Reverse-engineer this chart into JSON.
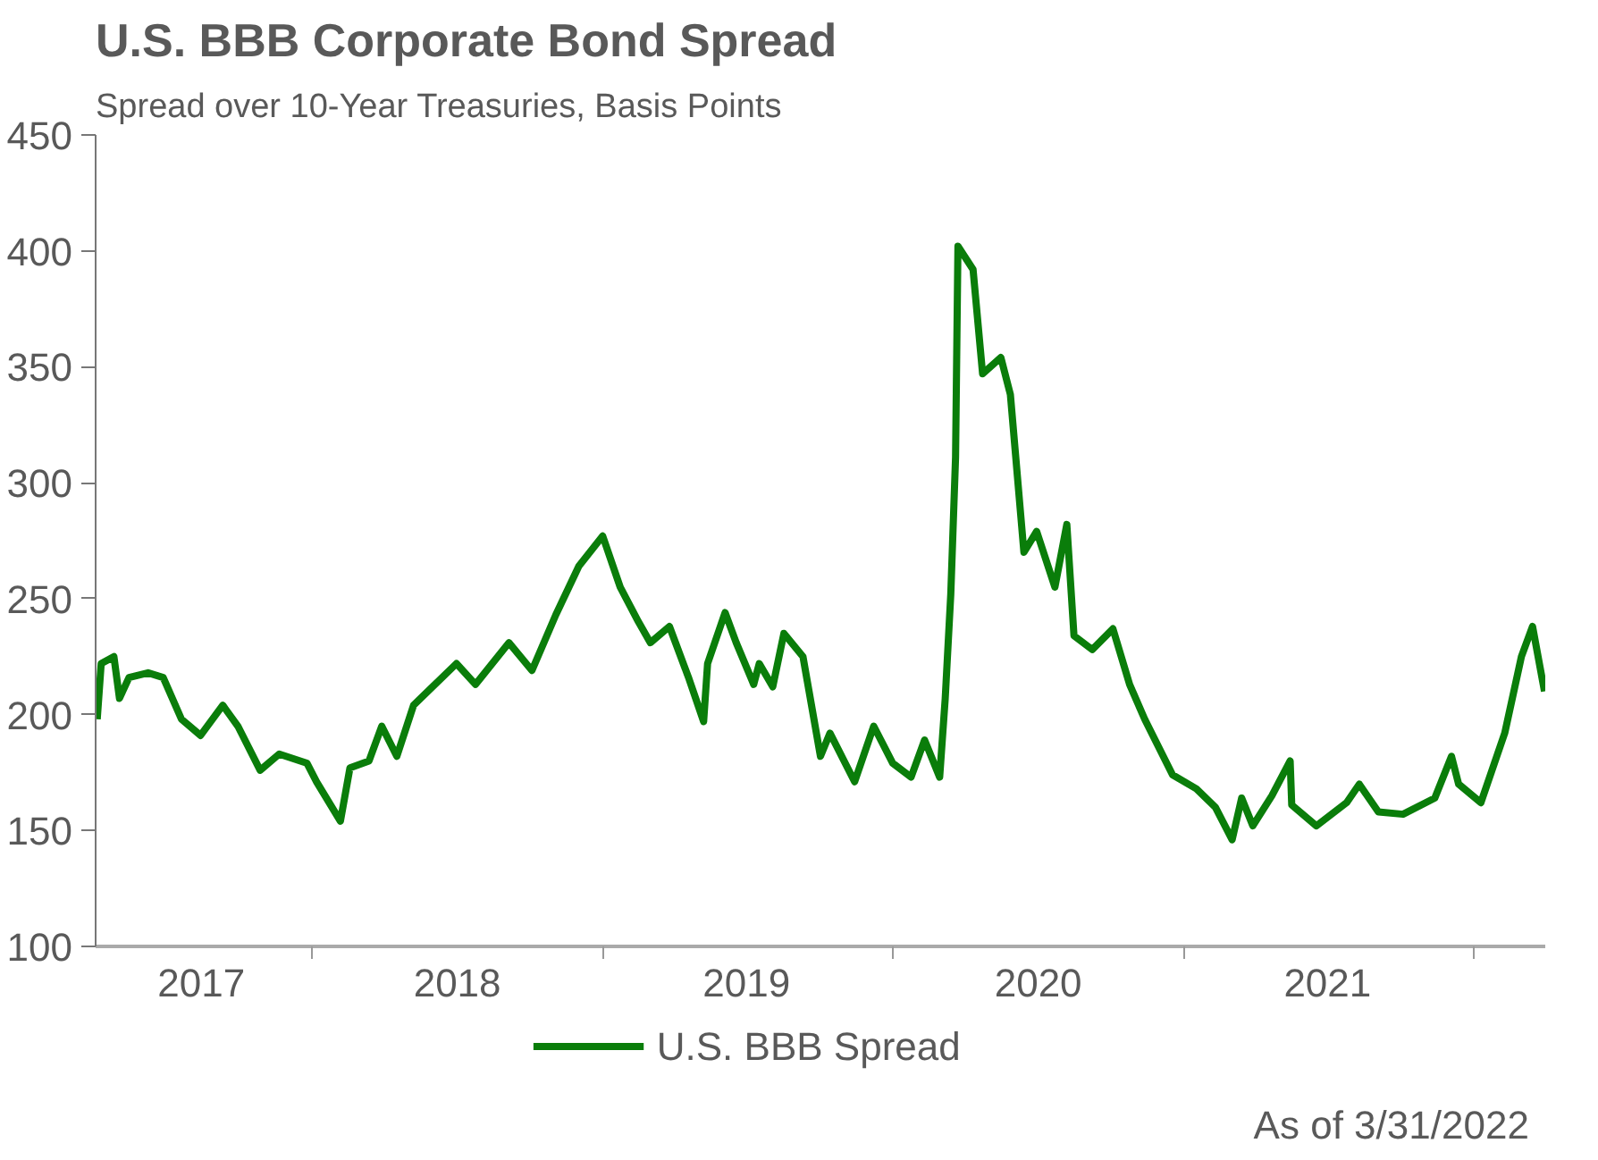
{
  "chart_data": {
    "type": "line",
    "title": "U.S. BBB Corporate Bond Spread",
    "subtitle": "Spread over 10-Year Treasuries, Basis Points",
    "annotations": [
      "As of 3/31/2022"
    ],
    "x": [
      "2017-04-05",
      "2017-04-10",
      "2017-04-26",
      "2017-05-03",
      "2017-05-15",
      "2017-06-08",
      "2017-06-27",
      "2017-07-20",
      "2017-08-13",
      "2017-09-10",
      "2017-09-29",
      "2017-10-27",
      "2017-11-20",
      "2017-12-25",
      "2018-01-06",
      "2018-02-05",
      "2018-02-17",
      "2018-03-13",
      "2018-03-29",
      "2018-04-17",
      "2018-05-08",
      "2018-06-01",
      "2018-07-01",
      "2018-07-25",
      "2018-09-05",
      "2018-10-04",
      "2018-11-03",
      "2018-12-02",
      "2019-01-01",
      "2019-01-23",
      "2019-02-15",
      "2019-03-02",
      "2019-03-26",
      "2019-04-19",
      "2019-05-08",
      "2019-05-13",
      "2019-06-04",
      "2019-06-18",
      "2019-07-10",
      "2019-07-17",
      "2019-08-03",
      "2019-08-17",
      "2019-09-10",
      "2019-10-02",
      "2019-10-14",
      "2019-11-14",
      "2019-12-08",
      "2020-01-01",
      "2020-01-24",
      "2020-02-10",
      "2020-02-29",
      "2020-03-07",
      "2020-03-14",
      "2020-03-20",
      "2020-03-23",
      "2020-04-11",
      "2020-04-23",
      "2020-05-16",
      "2020-05-28",
      "2020-06-14",
      "2020-06-30",
      "2020-07-23",
      "2020-08-07",
      "2020-08-16",
      "2020-09-08",
      "2020-10-04",
      "2020-10-25",
      "2020-11-13",
      "2020-12-18",
      "2021-01-17",
      "2021-02-10",
      "2021-03-03",
      "2021-03-15",
      "2021-03-29",
      "2021-04-22",
      "2021-05-15",
      "2021-05-17",
      "2021-06-17",
      "2021-07-25",
      "2021-08-10",
      "2021-09-03",
      "2021-10-04",
      "2021-11-13",
      "2021-12-04",
      "2021-12-13",
      "2022-01-10",
      "2022-02-09",
      "2022-03-02",
      "2022-03-16",
      "2022-03-31"
    ],
    "series": [
      {
        "name": "U.S. BBB Spread",
        "color": "#0a7d0a",
        "values": [
          198,
          222,
          225,
          207,
          216,
          218,
          216,
          198,
          191,
          204,
          195,
          176,
          183,
          179,
          171,
          154,
          177,
          180,
          195,
          182,
          204,
          212,
          222,
          213,
          231,
          219,
          243,
          264,
          277,
          255,
          240,
          231,
          238,
          216,
          197,
          222,
          244,
          231,
          213,
          222,
          212,
          235,
          225,
          182,
          192,
          171,
          195,
          179,
          173,
          189,
          173,
          207,
          252,
          311,
          402,
          392,
          347,
          354,
          338,
          270,
          279,
          255,
          282,
          234,
          228,
          237,
          213,
          198,
          174,
          168,
          160,
          146,
          164,
          152,
          165,
          180,
          161,
          152,
          162,
          170,
          158,
          157,
          164,
          182,
          170,
          162,
          192,
          225,
          238,
          210
        ]
      }
    ],
    "xlim": [
      "2017-04-03",
      "2022-04-01"
    ],
    "xticks": [
      {
        "value": "2017-08-14",
        "label": "2017"
      },
      {
        "value": "2018-01-01",
        "label": null
      },
      {
        "value": "2018-07-02",
        "label": "2018"
      },
      {
        "value": "2019-01-01",
        "label": null
      },
      {
        "value": "2019-07-01",
        "label": "2019"
      },
      {
        "value": "2020-01-01",
        "label": null
      },
      {
        "value": "2020-07-02",
        "label": "2020"
      },
      {
        "value": "2021-01-01",
        "label": null
      },
      {
        "value": "2021-07-01",
        "label": "2021"
      },
      {
        "value": "2022-01-01",
        "label": null
      }
    ],
    "ylim": [
      100,
      450
    ],
    "yticks": [
      100,
      150,
      200,
      250,
      300,
      350,
      400,
      450
    ],
    "grid": false,
    "legend": "bottom",
    "line_style": "solid"
  }
}
